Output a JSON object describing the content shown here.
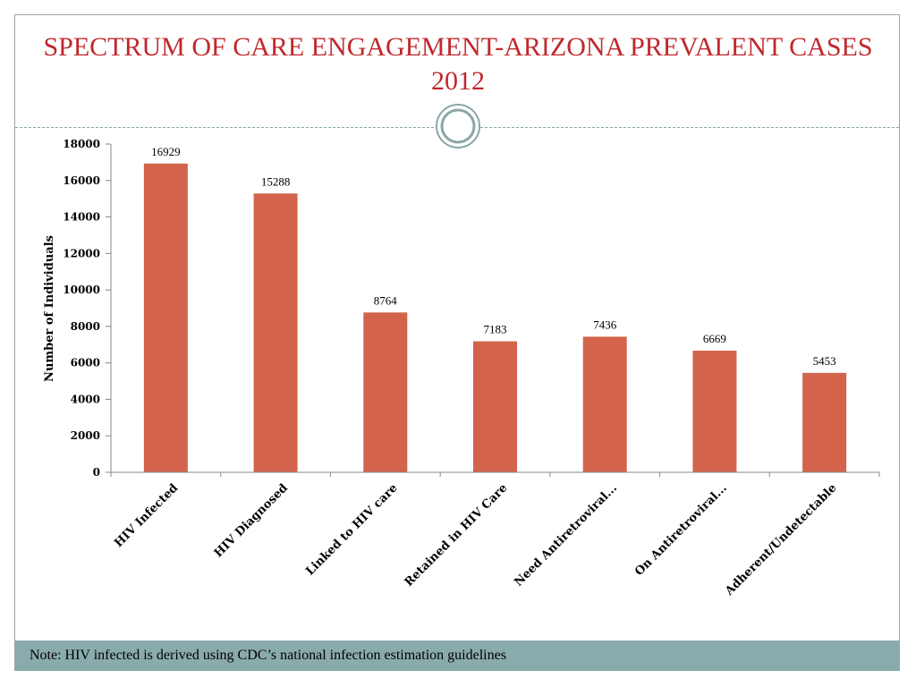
{
  "slide": {
    "title": "SPECTRUM OF CARE ENGAGEMENT-ARIZONA PREVALENT CASES 2012",
    "note": "Note: HIV infected is derived using CDC’s national infection estimation guidelines"
  },
  "colors": {
    "title": "#c0282d",
    "bar": "#d3634b",
    "footer": "#8aabab",
    "divider": "#8aa6a6"
  },
  "chart_data": {
    "type": "bar",
    "categories": [
      "HIV Infected",
      "HIV Diagnosed",
      "Linked to HIV care",
      "Retained in HIV Care",
      "Need Antiretroviral...",
      "On Antiretroviral...",
      "Adherent/Undetectable"
    ],
    "values": [
      16929,
      15288,
      8764,
      7183,
      7436,
      6669,
      5453
    ],
    "data_labels": [
      "16929",
      "15288",
      "8764",
      "7183",
      "7436",
      "6669",
      "5453"
    ],
    "ylabel": "Number of Individuals",
    "ylim": [
      0,
      18000
    ],
    "yticks": [
      0,
      2000,
      4000,
      6000,
      8000,
      10000,
      12000,
      14000,
      16000,
      18000
    ],
    "ytick_labels": [
      "0",
      "2000",
      "4000",
      "6000",
      "8000",
      "10000",
      "12000",
      "14000",
      "16000",
      "18000"
    ],
    "grid": false,
    "legend": "none"
  }
}
